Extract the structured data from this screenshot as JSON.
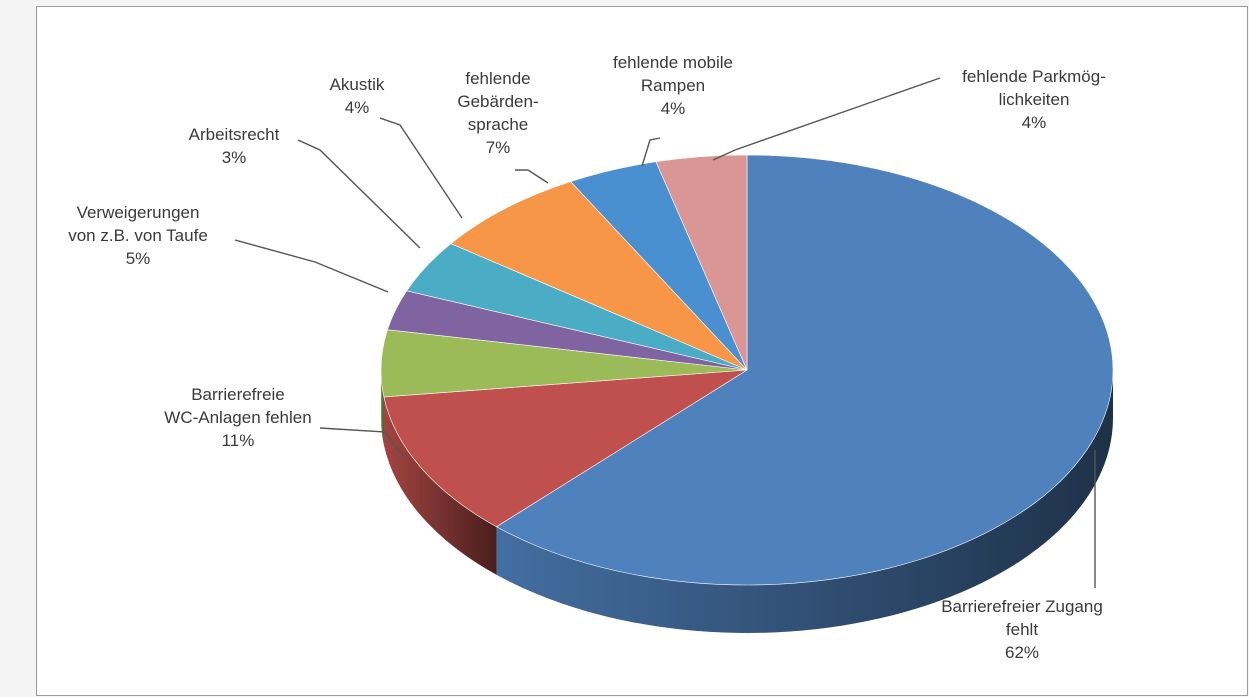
{
  "chart_data": {
    "type": "pie",
    "style": "3d",
    "title": "",
    "slices": [
      {
        "label_lines": [
          "Barrierefreier Zugang",
          "fehlt",
          "62%"
        ],
        "value": 62,
        "color": "#4f81bd"
      },
      {
        "label_lines": [
          "Barrierefreie",
          "WC-Anlagen fehlen",
          "11%"
        ],
        "value": 11,
        "color": "#c0504d"
      },
      {
        "label_lines": [
          "Verweigerungen",
          "von z.B. von Taufe",
          "5%"
        ],
        "value": 5,
        "color": "#9bbb59"
      },
      {
        "label_lines": [
          "Arbeitsrecht",
          "3%"
        ],
        "value": 3,
        "color": "#8064a2"
      },
      {
        "label_lines": [
          "Akustik",
          "4%"
        ],
        "value": 4,
        "color": "#4bacc6"
      },
      {
        "label_lines": [
          "fehlende",
          "Gebärden-",
          "sprache",
          "7%"
        ],
        "value": 7,
        "color": "#f79646"
      },
      {
        "label_lines": [
          "fehlende mobile",
          "Rampen",
          "4%"
        ],
        "value": 4,
        "color": "#4a90d0"
      },
      {
        "label_lines": [
          "fehlende Parkmög-",
          "lichkeiten",
          "4%"
        ],
        "value": 4,
        "color": "#d99694"
      }
    ]
  }
}
